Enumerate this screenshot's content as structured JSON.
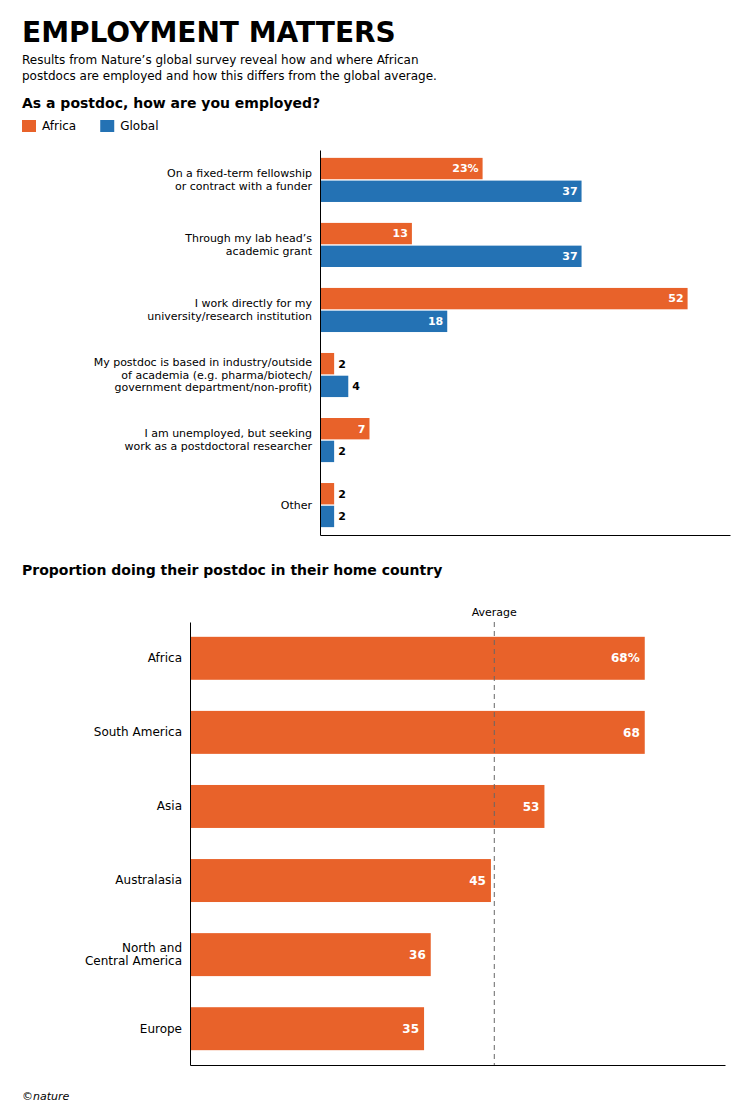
{
  "title": "EMPLOYMENT MATTERS",
  "subtitle": "Results from Nature’s global survey reveal how and where African\npostdocs are employed and how this differs from the global average.",
  "footer": "©nature",
  "chart_data": [
    {
      "type": "bar",
      "orientation": "horizontal",
      "title": "As a postdoc, how are you employed?",
      "categories": [
        "On a fixed-term fellowship\nor contract with a funder",
        "Through my lab head’s\nacademic grant",
        "I work directly for my\nuniversity/research institution",
        "My postdoc is based in industry/outside\nof academia (e.g. pharma/biotech/\ngovernment department/non-profit)",
        "I am unemployed, but seeking\nwork as a postdoctoral researcher",
        "Other"
      ],
      "series": [
        {
          "name": "Africa",
          "color": "#E8622A",
          "values": [
            23,
            13,
            52,
            2,
            7,
            2
          ],
          "value_labels": [
            "23%",
            "13",
            "52",
            "2",
            "7",
            "2"
          ]
        },
        {
          "name": "Global",
          "color": "#2472B4",
          "values": [
            37,
            37,
            18,
            4,
            2,
            2
          ],
          "value_labels": [
            "37",
            "37",
            "18",
            "4",
            "2",
            "2"
          ]
        }
      ],
      "xlim": [
        0,
        58
      ],
      "legend": "top",
      "data_labels": true,
      "tick_labels": false,
      "grid": false
    },
    {
      "type": "bar",
      "orientation": "horizontal",
      "title": "Proportion doing their postdoc in their home country",
      "categories": [
        "Africa",
        "South America",
        "Asia",
        "Australasia",
        "North and\nCentral America",
        "Europe"
      ],
      "values": [
        68,
        68,
        53,
        45,
        36,
        35
      ],
      "value_labels": [
        "68%",
        "68",
        "53",
        "45",
        "36",
        "35"
      ],
      "color": "#E8622A",
      "annotations": [
        {
          "text": "Average",
          "value": 45.5
        }
      ],
      "xlim": [
        0,
        80
      ],
      "data_labels": true,
      "tick_labels": false,
      "grid": false
    }
  ]
}
